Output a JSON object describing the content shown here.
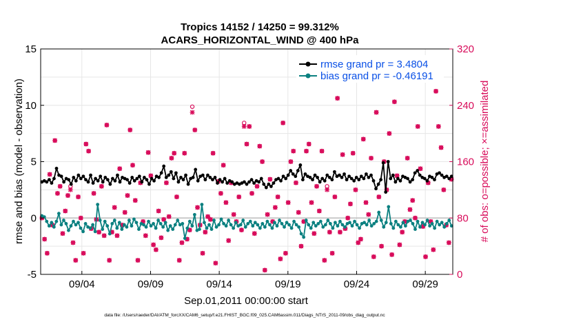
{
  "chart_data": {
    "type": "line",
    "title_line1": "Tropics 14152 / 14250 = 99.312%",
    "title_line2": "ACARS_HORIZONTAL_WIND @ 400 hPa",
    "xlabel": "Sep.01,2011 00:00:00 start",
    "ylabel_left": "rmse and bias (model - observation)",
    "ylabel_right": "# of obs: o=possible; ×=assimilated",
    "ylim_left": [
      -5,
      15
    ],
    "ylim_right": [
      0,
      320
    ],
    "yticks_left": [
      "15",
      "10",
      "5",
      "0",
      "-5"
    ],
    "yticks_right": [
      "320",
      "240",
      "160",
      "80",
      "0"
    ],
    "x_tick_labels": [
      "09/04",
      "09/09",
      "09/14",
      "09/19",
      "09/24",
      "09/29"
    ],
    "x_tick_days": [
      4,
      9,
      14,
      19,
      24,
      29
    ],
    "xlim_days": [
      1,
      31
    ],
    "footnote": "data file: /Users/raeder/DAI/ATM_forcXX/CAM6_setup/f.e21.FHIST_BGC.f09_025.CAM6assim.011/Diags_NTrS_2011-09/obs_diag_output.nc",
    "colors": {
      "rmse": "#000000",
      "bias": "#0b8080",
      "obs": "#d80b5a",
      "left_axis": "#000000",
      "right_axis": "#d80b5a",
      "grid": "#e6e6e6",
      "legend_text": "#0a50e6",
      "zero_line": "#bbbbbb"
    },
    "series": [
      {
        "name": "rmse grand pr = 3.4804",
        "axis": "left",
        "color": "#000000",
        "values": [
          3.2,
          3.3,
          3.2,
          3.4,
          3.1,
          3.5,
          4.4,
          3.8,
          3.7,
          3.2,
          3.5,
          3.4,
          3.0,
          3.6,
          3.3,
          3.8,
          3.5,
          3.7,
          3.4,
          3.2,
          3.8,
          3.1,
          3.5,
          3.3,
          3.7,
          3.2,
          3.6,
          3.4,
          3.0,
          3.5,
          3.3,
          3.8,
          3.2,
          3.6,
          3.5,
          3.4,
          3.1,
          3.6,
          3.3,
          3.5,
          3.7,
          3.2,
          3.6,
          3.4,
          3.0,
          3.5,
          3.3,
          3.7,
          3.6,
          4.0,
          4.6,
          3.6,
          3.8,
          4.1,
          3.5,
          4.0,
          3.2,
          3.6,
          3.4,
          3.8,
          3.0,
          3.5,
          3.6,
          4.3,
          3.3,
          3.7,
          3.8,
          3.4,
          3.8,
          3.6,
          3.4,
          3.6,
          3.1,
          3.4,
          3.2,
          3.5,
          3.1,
          3.3,
          3.2,
          3.0,
          3.1,
          3.0,
          3.1,
          3.2,
          3.0,
          3.2,
          3.4,
          3.1,
          3.3,
          3.2,
          3.5,
          3.0,
          2.7,
          3.0,
          2.8,
          3.1,
          3.4,
          3.5,
          3.3,
          3.7,
          3.5,
          3.8,
          4.2,
          3.9,
          3.7,
          4.2,
          4.7,
          3.4,
          3.9,
          3.7,
          3.6,
          3.4,
          3.8,
          3.6,
          3.2,
          3.5,
          3.3,
          3.8,
          3.6,
          3.4,
          4.1,
          3.7,
          3.8,
          3.6,
          3.9,
          3.4,
          3.7,
          3.5,
          3.3,
          3.6,
          3.4,
          3.7,
          3.5,
          3.9,
          3.6,
          3.8,
          3.3,
          2.6,
          3.0,
          3.4,
          4.9,
          2.3,
          5.0,
          3.5,
          3.8,
          3.2,
          3.5,
          3.3,
          3.7,
          3.6,
          3.5,
          3.2,
          3.4,
          4.0,
          4.2,
          3.8,
          3.6,
          3.5,
          3.3,
          3.7,
          3.6,
          3.4,
          3.9,
          4.0,
          3.8,
          3.6,
          3.7,
          3.5,
          3.7
        ]
      },
      {
        "name": "bias grand pr = -0.46191",
        "axis": "left",
        "color": "#0b8080",
        "values": [
          0.2,
          0.1,
          -0.3,
          -0.7,
          -0.4,
          -0.8,
          -0.3,
          0.4,
          -0.6,
          -0.2,
          -0.5,
          -1.1,
          -0.7,
          -0.3,
          -0.6,
          -0.4,
          -0.9,
          -1.2,
          -0.5,
          -0.8,
          -0.9,
          -0.6,
          -1.2,
          1.2,
          -0.2,
          -1.0,
          -0.3,
          -0.7,
          -1.4,
          -0.5,
          -0.2,
          -0.9,
          -0.4,
          -1.0,
          -0.6,
          -0.8,
          -0.2,
          -0.7,
          -0.1,
          -0.4,
          -1.0,
          -0.5,
          -0.6,
          -0.8,
          -0.3,
          -0.7,
          -0.5,
          -0.9,
          -0.2,
          -0.5,
          -0.8,
          -0.4,
          -1.1,
          -0.7,
          -1.0,
          -0.6,
          -0.2,
          -0.6,
          -0.5,
          -1.8,
          -0.9,
          -0.3,
          -0.7,
          0.3,
          -1.1,
          -1.0,
          1.2,
          -0.4,
          -0.9,
          -0.6,
          -1.0,
          -0.2,
          -0.8,
          -0.6,
          -0.1,
          -0.5,
          -0.7,
          -0.2,
          -0.6,
          -0.9,
          -0.4,
          -0.7,
          -0.6,
          -0.2,
          -0.8,
          -0.5,
          -0.3,
          -0.7,
          -0.4,
          -0.6,
          -0.9,
          -0.5,
          -0.8,
          -0.3,
          -0.6,
          -0.9,
          -0.4,
          -0.7,
          -0.2,
          -0.5,
          -0.8,
          -0.4,
          -0.6,
          -0.9,
          -0.3,
          -0.6,
          -0.8,
          -1.4,
          -1.7,
          -0.2,
          -0.6,
          -0.9,
          -0.4,
          -0.7,
          -0.5,
          -0.3,
          -0.8,
          -0.6,
          -0.2,
          -0.5,
          -0.9,
          -0.4,
          -0.7,
          -0.3,
          -0.6,
          -0.8,
          -0.5,
          -0.4,
          -0.7,
          -0.3,
          -0.6,
          -0.9,
          -0.5,
          -0.4,
          -0.6,
          -0.2,
          -0.7,
          -0.5,
          -0.3,
          0.5,
          -0.2,
          -0.8,
          -0.4,
          1.0,
          -0.5,
          -0.9,
          -0.3,
          -0.6,
          -0.8,
          -0.4,
          -0.7,
          -0.3,
          -0.2,
          -0.5,
          -1.0,
          -0.3,
          -0.8,
          -0.4,
          -0.6,
          -0.2,
          -0.7,
          -0.5,
          -0.9,
          -0.3,
          -0.6,
          -0.4,
          -0.8,
          -0.5,
          -0.2,
          -0.7
        ]
      },
      {
        "name": "obs possible",
        "axis": "right",
        "color": "#d80b5a",
        "marker": "o",
        "values": [
          80,
          50,
          30,
          142,
          70,
          190,
          115,
          125,
          58,
          90,
          112,
          125,
          45,
          20,
          110,
          80,
          30,
          185,
          175,
          65,
          115,
          78,
          60,
          125,
          55,
          212,
          20,
          60,
          95,
          55,
          150,
          70,
          88,
          112,
          205,
          155,
          105,
          20,
          130,
          75,
          55,
          173,
          140,
          42,
          35,
          90,
          52,
          78,
          130,
          82,
          165,
          172,
          110,
          20,
          45,
          172,
          50,
          63,
          238,
          205,
          95,
          70,
          30,
          60,
          82,
          78,
          172,
          16,
          132,
          115,
          155,
          102,
          48,
          130,
          85,
          75,
          110,
          63,
          215,
          185,
          210,
          115,
          58,
          125,
          182,
          160,
          6,
          85,
          135,
          75,
          95,
          110,
          22,
          215,
          30,
          102,
          160,
          175,
          130,
          88,
          40,
          75,
          175,
          185,
          102,
          58,
          125,
          90,
          175,
          20,
          125,
          60,
          30,
          110,
          250,
          60,
          170,
          65,
          80,
          100,
          172,
          120,
          45,
          50,
          192,
          102,
          85,
          165,
          25,
          230,
          110,
          40,
          160,
          120,
          200,
          28,
          245,
          140,
          42,
          60,
          75,
          165,
          92,
          105,
          80,
          210,
          150,
          68,
          25,
          130,
          75,
          35,
          260,
          210,
          180,
          120,
          70,
          45,
          135
        ]
      },
      {
        "name": "obs assimilated",
        "axis": "right",
        "color": "#d80b5a",
        "marker": "x",
        "values": [
          80,
          50,
          30,
          142,
          70,
          190,
          115,
          125,
          58,
          90,
          112,
          120,
          45,
          20,
          110,
          80,
          30,
          185,
          175,
          65,
          115,
          78,
          60,
          125,
          55,
          212,
          20,
          60,
          95,
          55,
          150,
          70,
          88,
          112,
          205,
          155,
          105,
          20,
          130,
          75,
          55,
          173,
          140,
          42,
          35,
          90,
          52,
          78,
          130,
          82,
          165,
          172,
          110,
          20,
          45,
          172,
          50,
          63,
          230,
          205,
          95,
          70,
          30,
          60,
          82,
          78,
          172,
          16,
          132,
          115,
          155,
          102,
          48,
          130,
          85,
          75,
          110,
          63,
          210,
          185,
          210,
          115,
          58,
          125,
          182,
          160,
          6,
          85,
          135,
          75,
          95,
          110,
          22,
          215,
          30,
          102,
          160,
          175,
          130,
          88,
          40,
          75,
          175,
          185,
          102,
          58,
          125,
          90,
          175,
          20,
          120,
          60,
          30,
          110,
          250,
          60,
          170,
          65,
          80,
          100,
          172,
          120,
          45,
          50,
          192,
          102,
          85,
          165,
          25,
          230,
          110,
          40,
          160,
          120,
          200,
          28,
          245,
          140,
          42,
          60,
          75,
          165,
          92,
          105,
          80,
          210,
          150,
          68,
          25,
          130,
          75,
          35,
          260,
          210,
          180,
          120,
          70,
          45,
          135
        ]
      }
    ],
    "legend": [
      "rmse grand pr = 3.4804",
      "bias grand pr = -0.46191"
    ],
    "legend_position": "top-right"
  }
}
